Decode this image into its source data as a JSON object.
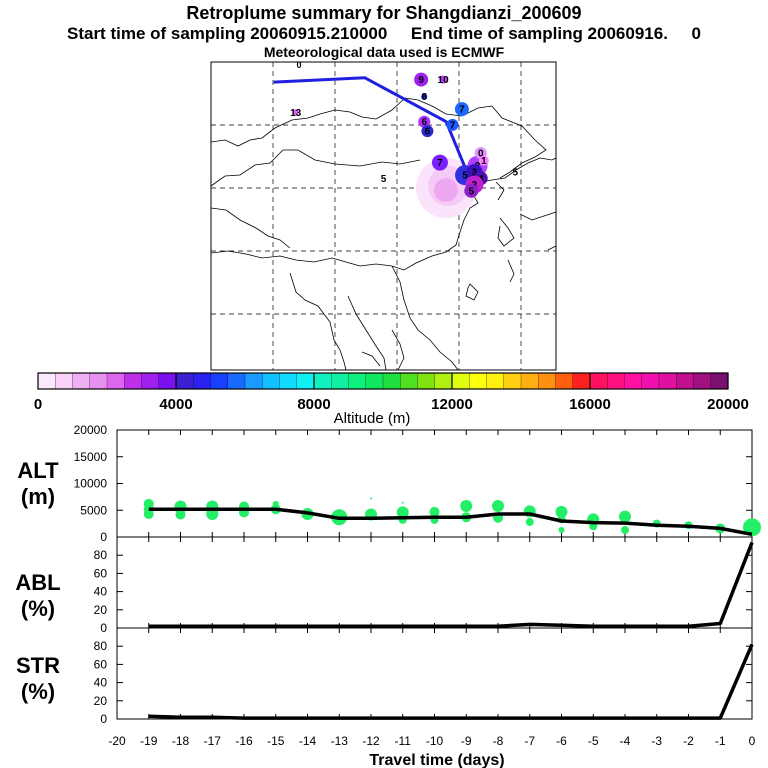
{
  "header": {
    "title": "Retroplume summary for Shangdianzi_200609",
    "sampling": "Start time of sampling 20060915.210000     End time of sampling 20060916.     0",
    "met": "Meteorological data used is ECMWF"
  },
  "map": {
    "labels": [
      {
        "lon": 103.5,
        "lat": 53.2,
        "text": "9",
        "color": "#a020f0",
        "size": 7
      },
      {
        "lon": 107.0,
        "lat": 53.2,
        "text": "10",
        "color": "#c040ff",
        "size": 4
      },
      {
        "lon": 83.5,
        "lat": 48.0,
        "text": "13",
        "color": "#e060ff",
        "size": 3
      },
      {
        "lon": 104.0,
        "lat": 50.5,
        "text": "8",
        "color": "#1a1aff",
        "size": 3
      },
      {
        "lon": 110.0,
        "lat": 48.5,
        "text": "7",
        "color": "#1a6aff",
        "size": 7
      },
      {
        "lon": 104.0,
        "lat": 46.5,
        "text": "6",
        "color": "#b030ff",
        "size": 6
      },
      {
        "lon": 104.5,
        "lat": 45.0,
        "text": "6",
        "color": "#2a2ad0",
        "size": 6
      },
      {
        "lon": 108.5,
        "lat": 46.0,
        "text": "7",
        "color": "#1a5aff",
        "size": 6
      },
      {
        "lon": 106.5,
        "lat": 40.0,
        "text": "7",
        "color": "#7a20ff",
        "size": 8
      },
      {
        "lon": 112.5,
        "lat": 39.5,
        "text": "2",
        "color": "#b040ff",
        "size": 10
      },
      {
        "lon": 110.5,
        "lat": 38.0,
        "text": "5",
        "color": "#3030e0",
        "size": 10
      },
      {
        "lon": 112.0,
        "lat": 38.5,
        "text": "3",
        "color": "#3a10c0",
        "size": 8
      },
      {
        "lon": 113.0,
        "lat": 37.5,
        "text": "4",
        "color": "#5010b0",
        "size": 7
      },
      {
        "lon": 112.0,
        "lat": 36.5,
        "text": "3",
        "color": "#c020d0",
        "size": 9
      },
      {
        "lon": 111.5,
        "lat": 35.5,
        "text": "5",
        "color": "#9020d0",
        "size": 7
      },
      {
        "lon": 113.0,
        "lat": 41.5,
        "text": "0",
        "color": "#e090ff",
        "size": 6
      },
      {
        "lon": 113.5,
        "lat": 40.3,
        "text": "1",
        "color": "#ff80ff",
        "size": 5
      },
      {
        "lon": 118.5,
        "lat": 38.5,
        "text": "5",
        "color": "",
        "size": 0
      },
      {
        "lon": 97.5,
        "lat": 37.5,
        "text": "5",
        "color": "",
        "size": 0
      }
    ],
    "track": [
      [
        80.0,
        52.8
      ],
      [
        94.5,
        53.5
      ],
      [
        107.5,
        46.5
      ],
      [
        111.0,
        38.0
      ]
    ]
  },
  "colorbar": {
    "tick_labels": [
      "0",
      "4000",
      "8000",
      "12000",
      "16000",
      "20000"
    ],
    "title": "Altitude (m)",
    "colors": [
      "#fce8fc",
      "#f8d0f8",
      "#f0b0f4",
      "#e890f0",
      "#dd66ee",
      "#c030e8",
      "#a020f0",
      "#7a10f0",
      "#3a20d0",
      "#2a20f0",
      "#1a40ff",
      "#1a6aff",
      "#1a9aff",
      "#10c0ff",
      "#10dcff",
      "#10f0f0",
      "#10f0c0",
      "#10f0a0",
      "#10f080",
      "#10e860",
      "#20e040",
      "#50e020",
      "#80e010",
      "#b0f010",
      "#e0ff10",
      "#ffff10",
      "#fff010",
      "#ffd010",
      "#ffb010",
      "#ff9010",
      "#ff6010",
      "#ff2020",
      "#ff1060",
      "#ff1080",
      "#ff10a0",
      "#f010b0",
      "#e010a0",
      "#c01090",
      "#a01080",
      "#7a1070"
    ]
  },
  "chart_data": [
    {
      "type": "line",
      "title": "",
      "ylabel": "ALT\n(m)",
      "xlabel": "Travel time (days)",
      "x": [
        0,
        -1,
        -2,
        -3,
        -4,
        -5,
        -6,
        -7,
        -8,
        -9,
        -10,
        -11,
        -12,
        -13,
        -14,
        -15,
        -16,
        -17,
        -18,
        -19
      ],
      "values": [
        500,
        1600,
        2000,
        2200,
        2600,
        2700,
        3000,
        4300,
        4300,
        3700,
        3700,
        3600,
        3500,
        3500,
        4500,
        5200,
        5200,
        5200,
        5200,
        5200
      ],
      "scatter": [
        {
          "x": 0,
          "y": 1800,
          "r": 9
        },
        {
          "x": -1,
          "y": 1600,
          "r": 5
        },
        {
          "x": -2,
          "y": 2200,
          "r": 4
        },
        {
          "x": -3,
          "y": 2500,
          "r": 4
        },
        {
          "x": -4,
          "y": 3800,
          "r": 6
        },
        {
          "x": -4,
          "y": 1300,
          "r": 4
        },
        {
          "x": -5,
          "y": 3300,
          "r": 6
        },
        {
          "x": -5,
          "y": 2000,
          "r": 4
        },
        {
          "x": -6,
          "y": 4700,
          "r": 6
        },
        {
          "x": -6,
          "y": 3300,
          "r": 4
        },
        {
          "x": -6,
          "y": 1300,
          "r": 3
        },
        {
          "x": -7,
          "y": 4800,
          "r": 6
        },
        {
          "x": -7,
          "y": 2800,
          "r": 4
        },
        {
          "x": -8,
          "y": 5800,
          "r": 6
        },
        {
          "x": -8,
          "y": 3600,
          "r": 5
        },
        {
          "x": -9,
          "y": 5800,
          "r": 6
        },
        {
          "x": -9,
          "y": 3700,
          "r": 5
        },
        {
          "x": -10,
          "y": 4700,
          "r": 5
        },
        {
          "x": -10,
          "y": 3200,
          "r": 4
        },
        {
          "x": -11,
          "y": 4600,
          "r": 6
        },
        {
          "x": -11,
          "y": 3200,
          "r": 4
        },
        {
          "x": -11,
          "y": 6400,
          "r": 1
        },
        {
          "x": -12,
          "y": 4200,
          "r": 6
        },
        {
          "x": -12,
          "y": 7200,
          "r": 1
        },
        {
          "x": -13,
          "y": 3700,
          "r": 8
        },
        {
          "x": -14,
          "y": 4300,
          "r": 6
        },
        {
          "x": -15,
          "y": 6200,
          "r": 3
        },
        {
          "x": -15,
          "y": 5200,
          "r": 5
        },
        {
          "x": -16,
          "y": 5700,
          "r": 5
        },
        {
          "x": -16,
          "y": 4600,
          "r": 5
        },
        {
          "x": -17,
          "y": 5700,
          "r": 6
        },
        {
          "x": -17,
          "y": 4300,
          "r": 6
        },
        {
          "x": -18,
          "y": 5700,
          "r": 6
        },
        {
          "x": -18,
          "y": 4200,
          "r": 5
        },
        {
          "x": -19,
          "y": 6200,
          "r": 5
        },
        {
          "x": -19,
          "y": 4300,
          "r": 5
        },
        {
          "x": -19,
          "y": 5200,
          "r": 5
        },
        {
          "x": -18,
          "y": 5000,
          "r": 5
        },
        {
          "x": -17,
          "y": 5000,
          "r": 6
        },
        {
          "x": -16,
          "y": 5200,
          "r": 5
        }
      ],
      "ylim": [
        0,
        20000
      ],
      "xlim": [
        -20,
        0
      ],
      "yticks": [
        "0",
        "5000",
        "10000",
        "15000",
        "20000"
      ]
    },
    {
      "type": "line",
      "ylabel": "ABL\n(%)",
      "x": [
        0,
        -1,
        -2,
        -3,
        -4,
        -5,
        -6,
        -7,
        -8,
        -9,
        -10,
        -11,
        -12,
        -13,
        -14,
        -15,
        -16,
        -17,
        -18,
        -19
      ],
      "values": [
        94,
        5,
        2,
        2,
        2,
        2,
        3,
        4,
        2,
        2,
        2,
        2,
        2,
        2,
        2,
        2,
        2,
        2,
        2,
        2
      ],
      "ylim": [
        0,
        100
      ],
      "xlim": [
        -20,
        0
      ],
      "yticks": [
        "0",
        "20",
        "40",
        "60",
        "80"
      ]
    },
    {
      "type": "line",
      "ylabel": "STR\n(%)",
      "xlabel": "Travel time (days)",
      "x": [
        0,
        -1,
        -2,
        -3,
        -4,
        -5,
        -6,
        -7,
        -8,
        -9,
        -10,
        -11,
        -12,
        -13,
        -14,
        -15,
        -16,
        -17,
        -18,
        -19
      ],
      "values": [
        82,
        1,
        1,
        1,
        1,
        1,
        1,
        1,
        1,
        1,
        1,
        1,
        1,
        1,
        1,
        1,
        1,
        2,
        2,
        3
      ],
      "ylim": [
        0,
        100
      ],
      "xlim": [
        -20,
        0
      ],
      "yticks": [
        "0",
        "20",
        "40",
        "60",
        "80"
      ],
      "xticks": [
        "-20",
        "-19",
        "-18",
        "-17",
        "-16",
        "-15",
        "-14",
        "-13",
        "-12",
        "-11",
        "-10",
        "-9",
        "-8",
        "-7",
        "-6",
        "-5",
        "-4",
        "-3",
        "-2",
        "-1",
        "0"
      ]
    }
  ]
}
